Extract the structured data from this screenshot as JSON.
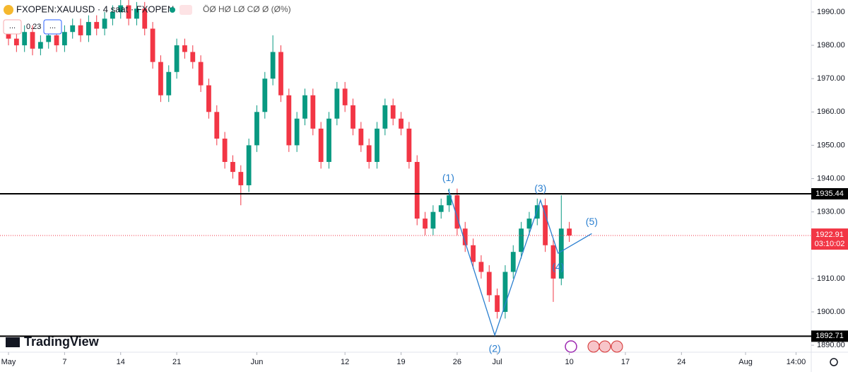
{
  "header": {
    "symbol": "FXOPEN:XAUUSD · 4 saat · FXOPEN",
    "ohlc": "ÖØ HØ LØ CØ Ø (Ø%)",
    "indicator_value": "0.23",
    "button_1": "...",
    "button_2": "..."
  },
  "chart_data": {
    "type": "candlestick",
    "x": [
      0,
      1,
      2,
      3,
      4,
      5,
      6,
      7,
      8,
      9,
      10,
      11,
      12,
      13,
      14,
      15,
      16,
      17,
      18,
      19,
      20,
      21,
      22,
      23,
      24,
      25,
      26,
      27,
      28,
      29,
      30,
      31,
      32,
      33,
      34,
      35,
      36,
      37,
      38,
      39,
      40,
      41,
      42,
      43,
      44,
      45,
      46,
      47,
      48,
      49,
      50,
      51,
      52,
      53,
      54,
      55,
      56,
      57,
      58,
      59,
      60,
      61,
      62,
      63,
      64,
      65,
      66,
      67,
      68,
      69,
      70
    ],
    "open": [
      1984,
      1982,
      1980,
      1984,
      1979,
      1981,
      1983,
      1980,
      1984,
      1986,
      1983,
      1987,
      1985,
      1988,
      1990,
      1992,
      1988,
      1991,
      1985,
      1975,
      1965,
      1972,
      1980,
      1978,
      1975,
      1968,
      1960,
      1952,
      1945,
      1942,
      1938,
      1950,
      1960,
      1970,
      1978,
      1965,
      1950,
      1958,
      1965,
      1955,
      1945,
      1958,
      1967,
      1962,
      1955,
      1950,
      1945,
      1955,
      1962,
      1958,
      1955,
      1945,
      1928,
      1925,
      1930,
      1932,
      1935,
      1925,
      1920,
      1915,
      1912,
      1905,
      1900,
      1912,
      1918,
      1925,
      1928,
      1932,
      1920,
      1910,
      1925
    ],
    "high": [
      1986,
      1984,
      1986,
      1986,
      1983,
      1985,
      1985,
      1986,
      1988,
      1988,
      1989,
      1989,
      1990,
      1992,
      1996,
      1994,
      1993,
      1993,
      1987,
      1977,
      1974,
      1982,
      1982,
      1980,
      1977,
      1970,
      1962,
      1954,
      1947,
      1944,
      1952,
      1962,
      1972,
      1983,
      1980,
      1967,
      1960,
      1967,
      1967,
      1957,
      1960,
      1969,
      1969,
      1964,
      1957,
      1952,
      1957,
      1964,
      1964,
      1960,
      1957,
      1947,
      1930,
      1932,
      1934,
      1937,
      1937,
      1927,
      1922,
      1917,
      1914,
      1907,
      1914,
      1920,
      1927,
      1930,
      1934,
      1934,
      1922,
      1935,
      1927
    ],
    "low": [
      1980,
      1978,
      1978,
      1977,
      1977,
      1979,
      1978,
      1978,
      1982,
      1981,
      1981,
      1983,
      1983,
      1986,
      1988,
      1986,
      1986,
      1983,
      1973,
      1963,
      1963,
      1970,
      1976,
      1973,
      1966,
      1958,
      1950,
      1943,
      1940,
      1932,
      1936,
      1948,
      1958,
      1968,
      1963,
      1948,
      1948,
      1956,
      1953,
      1943,
      1943,
      1956,
      1960,
      1953,
      1948,
      1943,
      1943,
      1953,
      1956,
      1953,
      1943,
      1926,
      1923,
      1923,
      1928,
      1930,
      1923,
      1918,
      1913,
      1910,
      1903,
      1898,
      1898,
      1910,
      1916,
      1923,
      1926,
      1918,
      1903,
      1908,
      1921
    ],
    "close": [
      1982,
      1980,
      1984,
      1979,
      1981,
      1983,
      1980,
      1984,
      1986,
      1983,
      1987,
      1985,
      1988,
      1990,
      1992,
      1988,
      1991,
      1985,
      1975,
      1965,
      1972,
      1980,
      1978,
      1975,
      1968,
      1960,
      1952,
      1945,
      1942,
      1938,
      1950,
      1960,
      1970,
      1978,
      1965,
      1950,
      1958,
      1965,
      1955,
      1945,
      1958,
      1967,
      1962,
      1955,
      1950,
      1945,
      1955,
      1962,
      1958,
      1955,
      1945,
      1928,
      1925,
      1930,
      1932,
      1935,
      1925,
      1920,
      1915,
      1912,
      1905,
      1900,
      1912,
      1918,
      1925,
      1928,
      1932,
      1920,
      1910,
      1925,
      1922.91
    ],
    "up_color": "#089981",
    "down_color": "#f23645",
    "xlim": [
      -1.06,
      100.2
    ],
    "xticks": [
      {
        "value": 0,
        "label": "May"
      },
      7,
      14,
      21,
      {
        "value": 31,
        "label": "Jun"
      },
      {
        "value": 42,
        "label": "12"
      },
      {
        "value": 49,
        "label": "19"
      },
      {
        "value": 56,
        "label": "26"
      },
      {
        "value": 61,
        "label": "Jul"
      },
      {
        "value": 70,
        "label": "10"
      },
      {
        "value": 77,
        "label": "17"
      },
      {
        "value": 84,
        "label": "24"
      },
      {
        "value": 92,
        "label": "Aug"
      },
      {
        "value": 98.3,
        "label": "14:00"
      }
    ],
    "ylim": [
      1887.9,
      1993.6
    ],
    "yticks": [
      {
        "value": 1890,
        "label": "1890.00"
      },
      {
        "value": 1900,
        "label": "1900.00"
      },
      {
        "value": 1910,
        "label": "1910.00"
      },
      {
        "value": 1920,
        "label": "1920.00"
      },
      {
        "value": 1930,
        "label": "1930.00"
      },
      {
        "value": 1940,
        "label": "1940.00"
      },
      {
        "value": 1950,
        "label": "1950.00"
      },
      {
        "value": 1960,
        "label": "1960.00"
      },
      {
        "value": 1970,
        "label": "1970.00"
      },
      {
        "value": 1980,
        "label": "1980.00"
      },
      {
        "value": 1990,
        "label": "1990.00"
      }
    ],
    "grid": false,
    "horizontal_lines": [
      {
        "value": 1935.44,
        "color": "#000000"
      },
      {
        "value": 1892.71,
        "color": "#000000"
      }
    ],
    "last_price": {
      "value": 1922.91,
      "countdown": "03:10:02",
      "color": "#f23645"
    },
    "wave_color": "#2a7fd0",
    "waves": [
      {
        "label": "(1)",
        "x": 54.9,
        "y": 1936.7
      },
      {
        "label": "(2)",
        "x": 60.7,
        "y": 1893
      },
      {
        "label": "(3)",
        "x": 66.4,
        "y": 1933.5
      },
      {
        "label": "(4)",
        "x": 68.6,
        "y": 1917.6
      },
      {
        "label": "(5)",
        "x": 72.8,
        "y": 1923.5
      }
    ]
  },
  "footer": {
    "logo": "TradingView"
  }
}
